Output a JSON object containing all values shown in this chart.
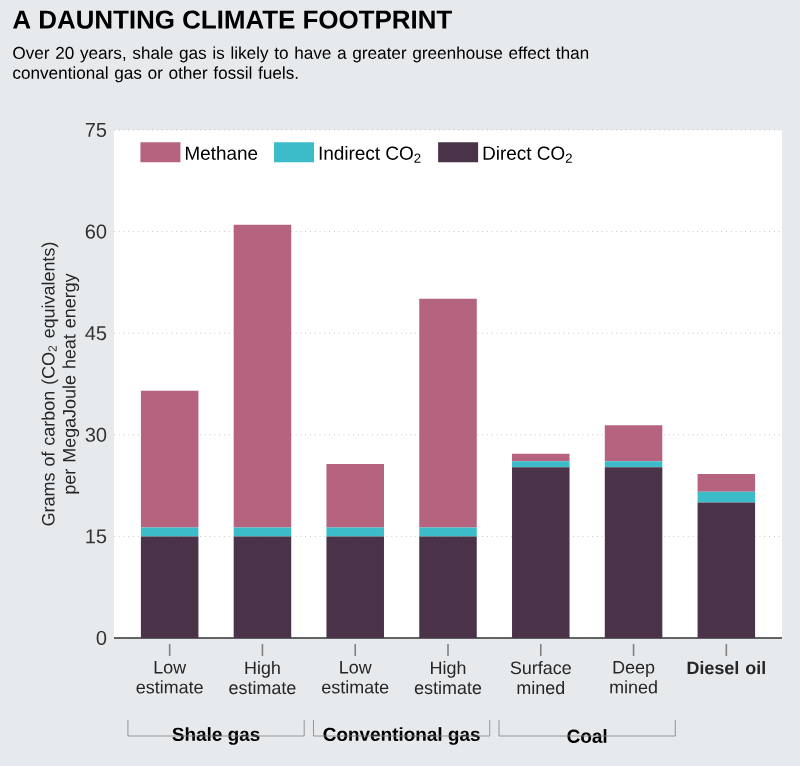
{
  "chart_data": {
    "type": "bar",
    "stacked": true,
    "title": "A DAUNTING CLIMATE FOOTPRINT",
    "subtitle": "Over 20 years, shale gas is likely to have a greater greenhouse effect than conventional gas or other fossil fuels.",
    "ylabel": "Grams of carbon (CO$_{2}$ equivalents) per MegaJoule heat energy",
    "categories": [
      "Low estimate",
      "High estimate",
      "Low estimate",
      "High estimate",
      "Surface mined",
      "Deep mined",
      "Diesel oil"
    ],
    "annotations": [
      "Shale gas",
      "Conventional gas",
      "Coal"
    ],
    "series": [
      {
        "name": "Direct CO$_{2}$",
        "color": "#4a3348",
        "values": [
          15,
          15,
          15,
          15,
          25.2,
          25.2,
          20
        ]
      },
      {
        "name": "Indirect CO$_{2}$",
        "color": "#3bbcc8",
        "values": [
          1.3,
          1.3,
          1.3,
          1.3,
          0.9,
          0.9,
          1.6
        ]
      },
      {
        "name": "Methane",
        "color": "#b5637f",
        "values": [
          20.2,
          44.7,
          9.4,
          33.8,
          1.1,
          5.3,
          2.6
        ]
      }
    ],
    "ylim": [
      0,
      75
    ],
    "yticks": [
      0,
      15,
      30,
      45,
      60,
      75
    ],
    "grid": "y",
    "legend": "top left"
  }
}
